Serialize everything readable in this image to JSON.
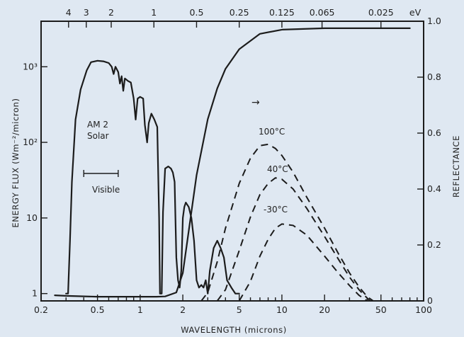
{
  "chart_data": {
    "type": "line",
    "xlabel": "WAVELENGTH (microns)",
    "ylabel_left": "ENERGY FLUX (Wm⁻²/micron)",
    "ylabel_right": "REFLECTANCE",
    "x_scale": "log",
    "xlim": [
      0.2,
      100
    ],
    "y_left_scale": "log",
    "y_left_lim": [
      0.8,
      4000
    ],
    "y_right_lim": [
      0,
      1.0
    ],
    "x_ticks": [
      {
        "value": 0.2,
        "label": "0.2"
      },
      {
        "value": 0.5,
        "label": "0.5"
      },
      {
        "value": 1,
        "label": "1"
      },
      {
        "value": 2,
        "label": "2"
      },
      {
        "value": 5,
        "label": "5"
      },
      {
        "value": 10,
        "label": "10"
      },
      {
        "value": 20,
        "label": "20"
      },
      {
        "value": 50,
        "label": "50"
      },
      {
        "value": 100,
        "label": "100"
      }
    ],
    "x_top_ticks": [
      {
        "value": 0.3125,
        "label": "4"
      },
      {
        "value": 0.4167,
        "label": "3"
      },
      {
        "value": 0.625,
        "label": "2"
      },
      {
        "value": 1.25,
        "label": "1"
      },
      {
        "value": 2.5,
        "label": "0.5"
      },
      {
        "value": 5,
        "label": "0.25"
      },
      {
        "value": 10,
        "label": "0.125"
      },
      {
        "value": 19.2,
        "label": "0.065"
      },
      {
        "value": 50,
        "label": "0.025"
      }
    ],
    "x_top_unit": "eV",
    "y_left_ticks": [
      {
        "value": 1,
        "label": "1"
      },
      {
        "value": 10,
        "label": "10"
      },
      {
        "value": 100,
        "label": "10²"
      },
      {
        "value": 1000,
        "label": "10³"
      }
    ],
    "y_right_ticks": [
      {
        "value": 0,
        "label": "0"
      },
      {
        "value": 0.2,
        "label": "0.2"
      },
      {
        "value": 0.4,
        "label": "0.4"
      },
      {
        "value": 0.6,
        "label": "0.6"
      },
      {
        "value": 0.8,
        "label": "0.8"
      },
      {
        "value": 1.0,
        "label": "1.0"
      }
    ],
    "series": [
      {
        "name": "AM 2 Solar",
        "axis": "left",
        "style": "solid",
        "points": [
          [
            0.3,
            1
          ],
          [
            0.31,
            1
          ],
          [
            0.32,
            5
          ],
          [
            0.33,
            30
          ],
          [
            0.35,
            200
          ],
          [
            0.38,
            500
          ],
          [
            0.42,
            900
          ],
          [
            0.45,
            1150
          ],
          [
            0.5,
            1200
          ],
          [
            0.55,
            1180
          ],
          [
            0.6,
            1120
          ],
          [
            0.63,
            1000
          ],
          [
            0.65,
            800
          ],
          [
            0.67,
            1000
          ],
          [
            0.7,
            850
          ],
          [
            0.72,
            600
          ],
          [
            0.74,
            750
          ],
          [
            0.76,
            480
          ],
          [
            0.78,
            700
          ],
          [
            0.82,
            650
          ],
          [
            0.86,
            620
          ],
          [
            0.9,
            380
          ],
          [
            0.93,
            200
          ],
          [
            0.96,
            380
          ],
          [
            1.0,
            400
          ],
          [
            1.05,
            380
          ],
          [
            1.08,
            170
          ],
          [
            1.12,
            100
          ],
          [
            1.15,
            180
          ],
          [
            1.2,
            240
          ],
          [
            1.26,
            200
          ],
          [
            1.32,
            160
          ],
          [
            1.36,
            10
          ],
          [
            1.38,
            1
          ],
          [
            1.42,
            1
          ],
          [
            1.45,
            12
          ],
          [
            1.5,
            45
          ],
          [
            1.58,
            48
          ],
          [
            1.65,
            45
          ],
          [
            1.7,
            40
          ],
          [
            1.75,
            30
          ],
          [
            1.8,
            3
          ],
          [
            1.85,
            1.5
          ],
          [
            1.9,
            1.2
          ],
          [
            1.95,
            2
          ],
          [
            2.0,
            10
          ],
          [
            2.05,
            14
          ],
          [
            2.1,
            16
          ],
          [
            2.2,
            14
          ],
          [
            2.3,
            10
          ],
          [
            2.4,
            5
          ],
          [
            2.5,
            1.5
          ],
          [
            2.6,
            1.2
          ],
          [
            2.7,
            1.3
          ],
          [
            2.8,
            1.2
          ],
          [
            2.9,
            1.5
          ],
          [
            3.0,
            1
          ],
          [
            3.1,
            2
          ],
          [
            3.3,
            4
          ],
          [
            3.5,
            5
          ],
          [
            3.7,
            4
          ],
          [
            3.9,
            3
          ],
          [
            4.1,
            1.5
          ],
          [
            4.4,
            1.2
          ],
          [
            4.7,
            1
          ],
          [
            5.0,
            1
          ]
        ]
      },
      {
        "name": "Reflectance",
        "axis": "right",
        "style": "solid",
        "points": [
          [
            0.25,
            0.02
          ],
          [
            0.3,
            0.018
          ],
          [
            0.5,
            0.015
          ],
          [
            1.0,
            0.015
          ],
          [
            1.3,
            0.015
          ],
          [
            1.5,
            0.016
          ],
          [
            1.8,
            0.03
          ],
          [
            2.0,
            0.1
          ],
          [
            2.2,
            0.25
          ],
          [
            2.5,
            0.45
          ],
          [
            3.0,
            0.65
          ],
          [
            3.5,
            0.76
          ],
          [
            4.0,
            0.83
          ],
          [
            5.0,
            0.9
          ],
          [
            7.0,
            0.955
          ],
          [
            10,
            0.97
          ],
          [
            20,
            0.975
          ],
          [
            50,
            0.975
          ],
          [
            80,
            0.975
          ]
        ]
      },
      {
        "name": "100°C",
        "axis": "right",
        "style": "dashed",
        "points": [
          [
            2.7,
            0
          ],
          [
            3.0,
            0.03
          ],
          [
            3.5,
            0.14
          ],
          [
            4.0,
            0.26
          ],
          [
            5.0,
            0.42
          ],
          [
            6.0,
            0.51
          ],
          [
            7.0,
            0.555
          ],
          [
            8.0,
            0.56
          ],
          [
            9.0,
            0.545
          ],
          [
            10,
            0.52
          ],
          [
            12,
            0.46
          ],
          [
            15,
            0.37
          ],
          [
            20,
            0.26
          ],
          [
            25,
            0.17
          ],
          [
            30,
            0.1
          ],
          [
            35,
            0.05
          ],
          [
            40,
            0.015
          ],
          [
            44,
            0
          ]
        ]
      },
      {
        "name": "40°C",
        "axis": "right",
        "style": "dashed",
        "points": [
          [
            3.5,
            0
          ],
          [
            4.0,
            0.04
          ],
          [
            5.0,
            0.18
          ],
          [
            6.0,
            0.3
          ],
          [
            7.0,
            0.38
          ],
          [
            8.0,
            0.42
          ],
          [
            9.0,
            0.44
          ],
          [
            10,
            0.435
          ],
          [
            12,
            0.4
          ],
          [
            15,
            0.33
          ],
          [
            20,
            0.23
          ],
          [
            25,
            0.15
          ],
          [
            30,
            0.085
          ],
          [
            35,
            0.04
          ],
          [
            40,
            0.01
          ],
          [
            42,
            0
          ]
        ]
      },
      {
        "name": "-30°C",
        "axis": "right",
        "style": "dashed",
        "points": [
          [
            5.0,
            0
          ],
          [
            6.0,
            0.07
          ],
          [
            7.0,
            0.16
          ],
          [
            8.0,
            0.22
          ],
          [
            9.0,
            0.26
          ],
          [
            10,
            0.275
          ],
          [
            12,
            0.27
          ],
          [
            15,
            0.235
          ],
          [
            20,
            0.16
          ],
          [
            25,
            0.1
          ],
          [
            30,
            0.055
          ],
          [
            35,
            0.02
          ],
          [
            40,
            0
          ]
        ]
      }
    ],
    "annotations": {
      "solar_label": [
        "AM 2",
        "Solar"
      ],
      "visible_label": "Visible",
      "visible_range": [
        0.4,
        0.7
      ],
      "temp_labels": [
        "100°C",
        "40°C",
        "-30°C"
      ],
      "arrow": "→"
    }
  }
}
